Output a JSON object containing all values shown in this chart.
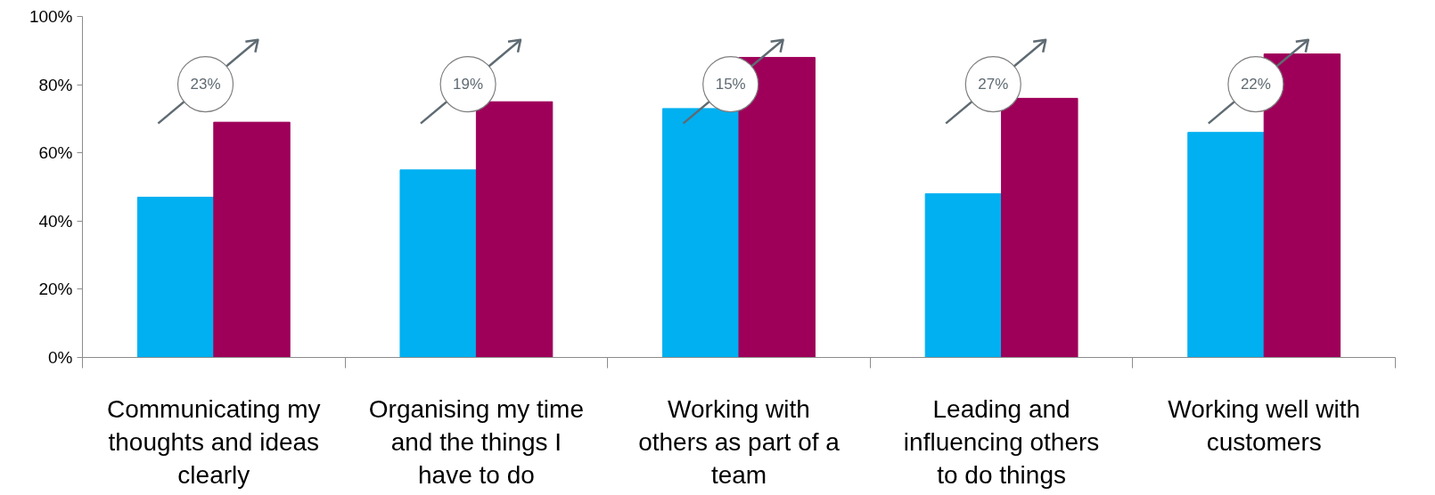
{
  "chart_data": {
    "type": "bar",
    "categories": [
      "Communicating my\nthoughts and ideas\nclearly",
      "Organising my time\nand the things I\nhave to do",
      "Working with\nothers as part of a\nteam",
      "Leading and\ninfluencing others\nto do things",
      "Working well with\ncustomers"
    ],
    "series": [
      {
        "color": "#00b0f0",
        "values": [
          47,
          55,
          73,
          48,
          66
        ]
      },
      {
        "color": "#9e0059",
        "values": [
          69,
          75,
          88,
          76,
          89
        ]
      }
    ],
    "ylim": [
      0,
      100
    ],
    "yticks": [
      {
        "value": 0,
        "label": "0%"
      },
      {
        "value": 20,
        "label": "20%"
      },
      {
        "value": 40,
        "label": "40%"
      },
      {
        "value": 60,
        "label": "60%"
      },
      {
        "value": 80,
        "label": "80%"
      },
      {
        "value": 100,
        "label": "100%"
      }
    ],
    "grid": false,
    "annotations": [
      "23%",
      "19%",
      "15%",
      "27%",
      "22%"
    ]
  }
}
